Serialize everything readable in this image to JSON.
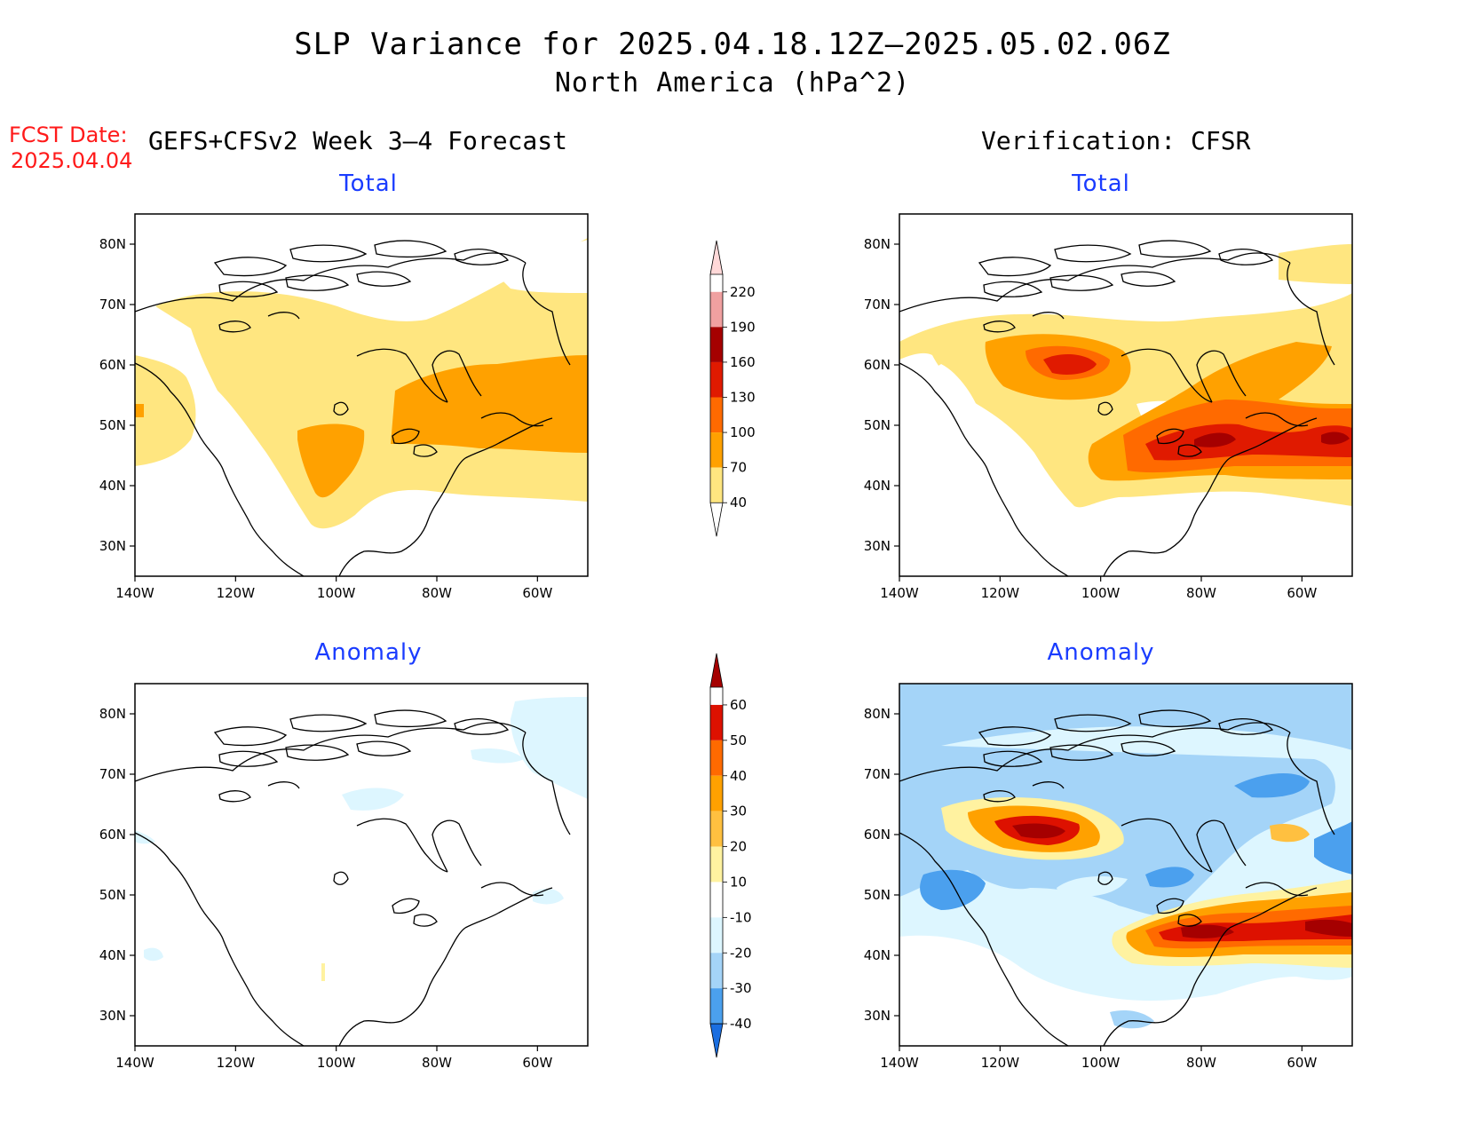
{
  "header": {
    "title": "SLP Variance for 2025.04.18.12Z–2025.05.02.06Z",
    "subtitle": "North America (hPa^2)",
    "fcst_label": "FCST Date:",
    "fcst_date": "2025.04.04",
    "left_heading": "GEFS+CFSv2 Week 3–4 Forecast",
    "right_heading": "Verification: CFSR"
  },
  "panels": {
    "forecast_total": {
      "title": "Total"
    },
    "verif_total": {
      "title": "Total"
    },
    "forecast_anomaly": {
      "title": "Anomaly"
    },
    "verif_anomaly": {
      "title": "Anomaly"
    }
  },
  "axes": {
    "lat_labels": [
      "80N",
      "70N",
      "60N",
      "50N",
      "40N",
      "30N"
    ],
    "lat_values": [
      80,
      70,
      60,
      50,
      40,
      30
    ],
    "lon_labels": [
      "140W",
      "120W",
      "100W",
      "80W",
      "60W"
    ],
    "lon_values": [
      -140,
      -120,
      -100,
      -80,
      -60
    ],
    "lat_range": [
      25,
      85
    ],
    "lon_range": [
      -140,
      -50
    ]
  },
  "colorbars": {
    "total": {
      "labels": [
        "40",
        "70",
        "100",
        "130",
        "160",
        "190",
        "220"
      ],
      "colors": [
        "#ffffff",
        "#ffe680",
        "#ffa100",
        "#ff6a00",
        "#e01a00",
        "#a50000",
        "#f0a0a0",
        "#ffd8d8"
      ]
    },
    "anomaly": {
      "labels": [
        "60",
        "50",
        "40",
        "30",
        "20",
        "10",
        "-10",
        "-20",
        "-30",
        "-40"
      ],
      "colors": [
        "#a50000",
        "#dd1100",
        "#ff6a00",
        "#ffa100",
        "#ffc040",
        "#fff2a0",
        "#ffffff",
        "#ddf6ff",
        "#a4d4f8",
        "#4ba0ee",
        "#1a6ee0"
      ]
    }
  }
}
